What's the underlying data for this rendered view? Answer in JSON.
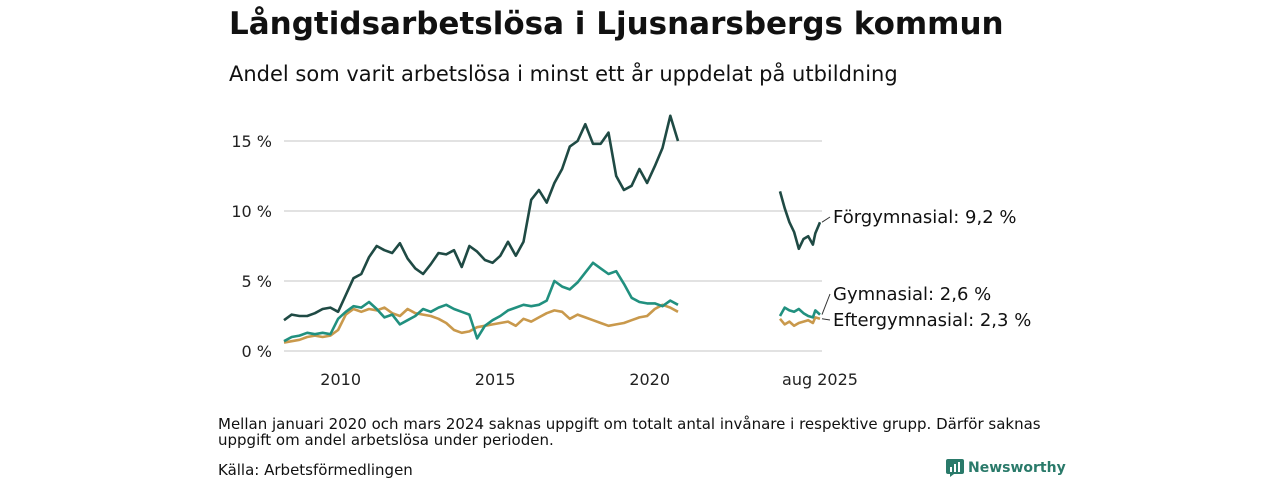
{
  "header": {
    "title": "Långtidsarbetslösa i Ljusnarsbergs kommun",
    "subtitle": "Andel som varit arbetslösa i minst ett år uppdelat på utbildning"
  },
  "footer": {
    "note": "Mellan januari 2020 och mars 2024 saknas uppgift om totalt antal invånare i respektive grupp. Därför saknas uppgift om andel arbetslösa under perioden.",
    "source": "Källa: Arbetsförmedlingen",
    "brand": "Newsworthy",
    "brand_icon": "newsworthy-logo-icon"
  },
  "chart_data": {
    "type": "line",
    "title": "Långtidsarbetslösa i Ljusnarsbergs kommun",
    "subtitle": "Andel som varit arbetslösa i minst ett år uppdelat på utbildning",
    "y_unit": "%",
    "ylim": [
      0,
      17
    ],
    "yticks": [
      "0 %",
      "5 %",
      "10 %",
      "15 %"
    ],
    "ytick_values": [
      0,
      5,
      10,
      15
    ],
    "xticks": [
      "2010",
      "2015",
      "2020",
      "aug 2025"
    ],
    "xtick_values": [
      "2010-01",
      "2015-01",
      "2020-01",
      "2025-08"
    ],
    "axis_break": [
      "2021-01",
      "2024-03"
    ],
    "grid": "horizontal",
    "legend": "end-labels",
    "series": [
      {
        "name": "Förgymnasial",
        "end_label": "Förgymnasial: 9,2 %",
        "color": "#1f4a44",
        "segments": [
          [
            [
              "2008-03",
              2.2
            ],
            [
              "2008-06",
              2.6
            ],
            [
              "2008-09",
              2.5
            ],
            [
              "2008-12",
              2.5
            ],
            [
              "2009-03",
              2.7
            ],
            [
              "2009-06",
              3.0
            ],
            [
              "2009-09",
              3.1
            ],
            [
              "2009-12",
              2.8
            ],
            [
              "2010-03",
              4.0
            ],
            [
              "2010-06",
              5.2
            ],
            [
              "2010-09",
              5.5
            ],
            [
              "2010-12",
              6.7
            ],
            [
              "2011-03",
              7.5
            ],
            [
              "2011-06",
              7.2
            ],
            [
              "2011-09",
              7.0
            ],
            [
              "2011-12",
              7.7
            ],
            [
              "2012-03",
              6.6
            ],
            [
              "2012-06",
              5.9
            ],
            [
              "2012-09",
              5.5
            ],
            [
              "2012-12",
              6.2
            ],
            [
              "2013-03",
              7.0
            ],
            [
              "2013-06",
              6.9
            ],
            [
              "2013-09",
              7.2
            ],
            [
              "2013-12",
              6.0
            ],
            [
              "2014-03",
              7.5
            ],
            [
              "2014-06",
              7.1
            ],
            [
              "2014-09",
              6.5
            ],
            [
              "2014-12",
              6.3
            ],
            [
              "2015-03",
              6.8
            ],
            [
              "2015-06",
              7.8
            ],
            [
              "2015-09",
              6.8
            ],
            [
              "2015-12",
              7.8
            ],
            [
              "2016-03",
              10.8
            ],
            [
              "2016-06",
              11.5
            ],
            [
              "2016-09",
              10.6
            ],
            [
              "2016-12",
              12.0
            ],
            [
              "2017-03",
              13.0
            ],
            [
              "2017-06",
              14.6
            ],
            [
              "2017-09",
              15.0
            ],
            [
              "2017-12",
              16.2
            ],
            [
              "2018-03",
              14.8
            ],
            [
              "2018-06",
              14.8
            ],
            [
              "2018-09",
              15.6
            ],
            [
              "2018-12",
              12.5
            ],
            [
              "2019-03",
              11.5
            ],
            [
              "2019-06",
              11.8
            ],
            [
              "2019-09",
              13.0
            ],
            [
              "2019-12",
              12.0
            ],
            [
              "2020-03",
              13.2
            ],
            [
              "2020-06",
              14.5
            ],
            [
              "2020-09",
              16.8
            ],
            [
              "2020-12",
              15.0
            ]
          ],
          [
            [
              "2024-03",
              11.4
            ],
            [
              "2024-05",
              10.2
            ],
            [
              "2024-07",
              9.2
            ],
            [
              "2024-09",
              8.5
            ],
            [
              "2024-11",
              7.3
            ],
            [
              "2025-01",
              8.0
            ],
            [
              "2025-03",
              8.2
            ],
            [
              "2025-05",
              7.6
            ],
            [
              "2025-06",
              8.4
            ],
            [
              "2025-08",
              9.2
            ]
          ]
        ]
      },
      {
        "name": "Gymnasial",
        "end_label": "Gymnasial: 2,6 %",
        "color": "#21907f",
        "segments": [
          [
            [
              "2008-03",
              0.7
            ],
            [
              "2008-06",
              1.0
            ],
            [
              "2008-09",
              1.1
            ],
            [
              "2008-12",
              1.3
            ],
            [
              "2009-03",
              1.2
            ],
            [
              "2009-06",
              1.3
            ],
            [
              "2009-09",
              1.2
            ],
            [
              "2009-12",
              2.3
            ],
            [
              "2010-03",
              2.8
            ],
            [
              "2010-06",
              3.2
            ],
            [
              "2010-09",
              3.1
            ],
            [
              "2010-12",
              3.5
            ],
            [
              "2011-03",
              3.0
            ],
            [
              "2011-06",
              2.4
            ],
            [
              "2011-09",
              2.6
            ],
            [
              "2011-12",
              1.9
            ],
            [
              "2012-03",
              2.2
            ],
            [
              "2012-06",
              2.5
            ],
            [
              "2012-09",
              3.0
            ],
            [
              "2012-12",
              2.8
            ],
            [
              "2013-03",
              3.1
            ],
            [
              "2013-06",
              3.3
            ],
            [
              "2013-09",
              3.0
            ],
            [
              "2013-12",
              2.8
            ],
            [
              "2014-03",
              2.6
            ],
            [
              "2014-06",
              0.9
            ],
            [
              "2014-09",
              1.8
            ],
            [
              "2014-12",
              2.2
            ],
            [
              "2015-03",
              2.5
            ],
            [
              "2015-06",
              2.9
            ],
            [
              "2015-09",
              3.1
            ],
            [
              "2015-12",
              3.3
            ],
            [
              "2016-03",
              3.2
            ],
            [
              "2016-06",
              3.3
            ],
            [
              "2016-09",
              3.6
            ],
            [
              "2016-12",
              5.0
            ],
            [
              "2017-03",
              4.6
            ],
            [
              "2017-06",
              4.4
            ],
            [
              "2017-09",
              4.9
            ],
            [
              "2017-12",
              5.6
            ],
            [
              "2018-03",
              6.3
            ],
            [
              "2018-06",
              5.9
            ],
            [
              "2018-09",
              5.5
            ],
            [
              "2018-12",
              5.7
            ],
            [
              "2019-03",
              4.8
            ],
            [
              "2019-06",
              3.8
            ],
            [
              "2019-09",
              3.5
            ],
            [
              "2019-12",
              3.4
            ],
            [
              "2020-03",
              3.4
            ],
            [
              "2020-06",
              3.2
            ],
            [
              "2020-09",
              3.6
            ],
            [
              "2020-12",
              3.3
            ]
          ],
          [
            [
              "2024-03",
              2.5
            ],
            [
              "2024-05",
              3.1
            ],
            [
              "2024-07",
              2.9
            ],
            [
              "2024-09",
              2.8
            ],
            [
              "2024-11",
              3.0
            ],
            [
              "2025-01",
              2.7
            ],
            [
              "2025-03",
              2.5
            ],
            [
              "2025-05",
              2.4
            ],
            [
              "2025-06",
              2.9
            ],
            [
              "2025-08",
              2.6
            ]
          ]
        ]
      },
      {
        "name": "Eftergymnasial",
        "end_label": "Eftergymnasial: 2,3 %",
        "color": "#c9994c",
        "segments": [
          [
            [
              "2008-03",
              0.6
            ],
            [
              "2008-06",
              0.7
            ],
            [
              "2008-09",
              0.8
            ],
            [
              "2008-12",
              1.0
            ],
            [
              "2009-03",
              1.1
            ],
            [
              "2009-06",
              1.0
            ],
            [
              "2009-09",
              1.1
            ],
            [
              "2009-12",
              1.5
            ],
            [
              "2010-03",
              2.6
            ],
            [
              "2010-06",
              3.0
            ],
            [
              "2010-09",
              2.8
            ],
            [
              "2010-12",
              3.0
            ],
            [
              "2011-03",
              2.9
            ],
            [
              "2011-06",
              3.1
            ],
            [
              "2011-09",
              2.7
            ],
            [
              "2011-12",
              2.5
            ],
            [
              "2012-03",
              3.0
            ],
            [
              "2012-06",
              2.7
            ],
            [
              "2012-09",
              2.6
            ],
            [
              "2012-12",
              2.5
            ],
            [
              "2013-03",
              2.3
            ],
            [
              "2013-06",
              2.0
            ],
            [
              "2013-09",
              1.5
            ],
            [
              "2013-12",
              1.3
            ],
            [
              "2014-03",
              1.4
            ],
            [
              "2014-06",
              1.7
            ],
            [
              "2014-09",
              1.8
            ],
            [
              "2014-12",
              1.9
            ],
            [
              "2015-03",
              2.0
            ],
            [
              "2015-06",
              2.1
            ],
            [
              "2015-09",
              1.8
            ],
            [
              "2015-12",
              2.3
            ],
            [
              "2016-03",
              2.1
            ],
            [
              "2016-06",
              2.4
            ],
            [
              "2016-09",
              2.7
            ],
            [
              "2016-12",
              2.9
            ],
            [
              "2017-03",
              2.8
            ],
            [
              "2017-06",
              2.3
            ],
            [
              "2017-09",
              2.6
            ],
            [
              "2017-12",
              2.4
            ],
            [
              "2018-03",
              2.2
            ],
            [
              "2018-06",
              2.0
            ],
            [
              "2018-09",
              1.8
            ],
            [
              "2018-12",
              1.9
            ],
            [
              "2019-03",
              2.0
            ],
            [
              "2019-06",
              2.2
            ],
            [
              "2019-09",
              2.4
            ],
            [
              "2019-12",
              2.5
            ],
            [
              "2020-03",
              3.0
            ],
            [
              "2020-06",
              3.3
            ],
            [
              "2020-09",
              3.1
            ],
            [
              "2020-12",
              2.8
            ]
          ],
          [
            [
              "2024-03",
              2.3
            ],
            [
              "2024-05",
              1.9
            ],
            [
              "2024-07",
              2.1
            ],
            [
              "2024-09",
              1.8
            ],
            [
              "2024-11",
              2.0
            ],
            [
              "2025-01",
              2.1
            ],
            [
              "2025-03",
              2.2
            ],
            [
              "2025-05",
              2.0
            ],
            [
              "2025-06",
              2.4
            ],
            [
              "2025-08",
              2.3
            ]
          ]
        ]
      }
    ]
  }
}
